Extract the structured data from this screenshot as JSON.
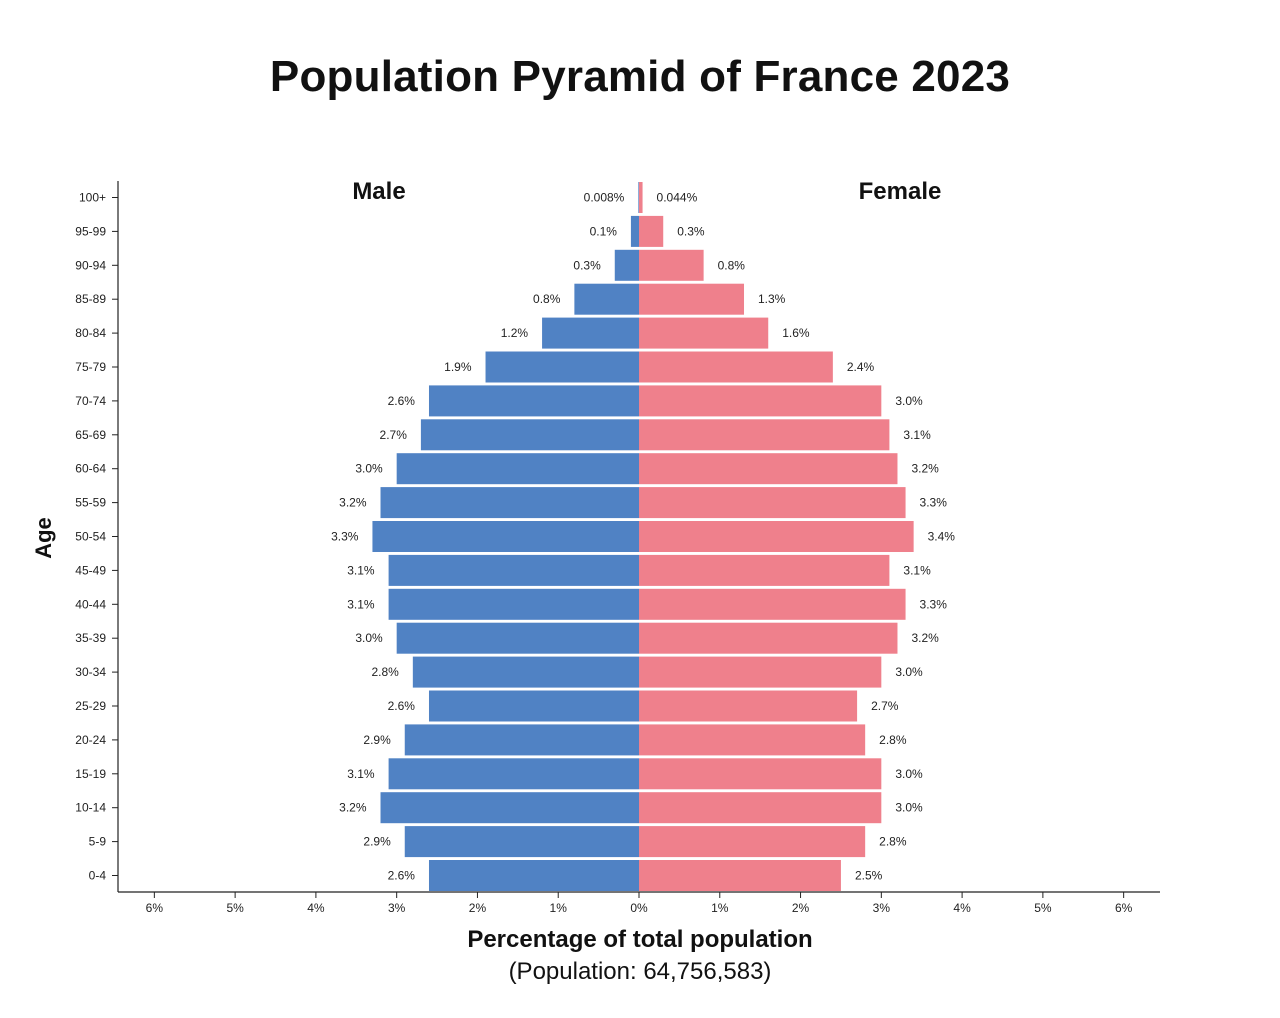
{
  "chart_data": {
    "type": "bar",
    "orientation": "horizontal-pyramid",
    "title": "Population Pyramid of France 2023",
    "xlabel": "Percentage of total population",
    "subtitle": "(Population: 64,756,583)",
    "ylabel": "Age",
    "categories": [
      "100+",
      "95-99",
      "90-94",
      "85-89",
      "80-84",
      "75-79",
      "70-74",
      "65-69",
      "60-64",
      "55-59",
      "50-54",
      "45-49",
      "40-44",
      "35-39",
      "30-34",
      "25-29",
      "20-24",
      "15-19",
      "10-14",
      "5-9",
      "0-4"
    ],
    "series": [
      {
        "name": "Male",
        "color": "#5082c4",
        "values": [
          0.008,
          0.1,
          0.3,
          0.8,
          1.2,
          1.9,
          2.6,
          2.7,
          3.0,
          3.2,
          3.3,
          3.1,
          3.1,
          3.0,
          2.8,
          2.6,
          2.9,
          3.1,
          3.2,
          2.9,
          2.6
        ],
        "labels": [
          "0.008%",
          "0.1%",
          "0.3%",
          "0.8%",
          "1.2%",
          "1.9%",
          "2.6%",
          "2.7%",
          "3.0%",
          "3.2%",
          "3.3%",
          "3.1%",
          "3.1%",
          "3.0%",
          "2.8%",
          "2.6%",
          "2.9%",
          "3.1%",
          "3.2%",
          "2.9%",
          "2.6%"
        ]
      },
      {
        "name": "Female",
        "color": "#ef808c",
        "values": [
          0.044,
          0.3,
          0.8,
          1.3,
          1.6,
          2.4,
          3.0,
          3.1,
          3.2,
          3.3,
          3.4,
          3.1,
          3.3,
          3.2,
          3.0,
          2.7,
          2.8,
          3.0,
          3.0,
          2.8,
          2.5
        ],
        "labels": [
          "0.044%",
          "0.3%",
          "0.8%",
          "1.3%",
          "1.6%",
          "2.4%",
          "3.0%",
          "3.1%",
          "3.2%",
          "3.3%",
          "3.4%",
          "3.1%",
          "3.3%",
          "3.2%",
          "3.0%",
          "2.7%",
          "2.8%",
          "3.0%",
          "3.0%",
          "2.8%",
          "2.5%"
        ]
      }
    ],
    "xticks": [
      -6,
      -5,
      -4,
      -3,
      -2,
      -1,
      0,
      1,
      2,
      3,
      4,
      5,
      6
    ],
    "xtick_labels": [
      "6%",
      "5%",
      "4%",
      "3%",
      "2%",
      "1%",
      "0%",
      "1%",
      "2%",
      "3%",
      "4%",
      "5%",
      "6%"
    ],
    "xlim": [
      -6.45,
      6.45
    ],
    "grid": false,
    "legend": "inline-top"
  }
}
